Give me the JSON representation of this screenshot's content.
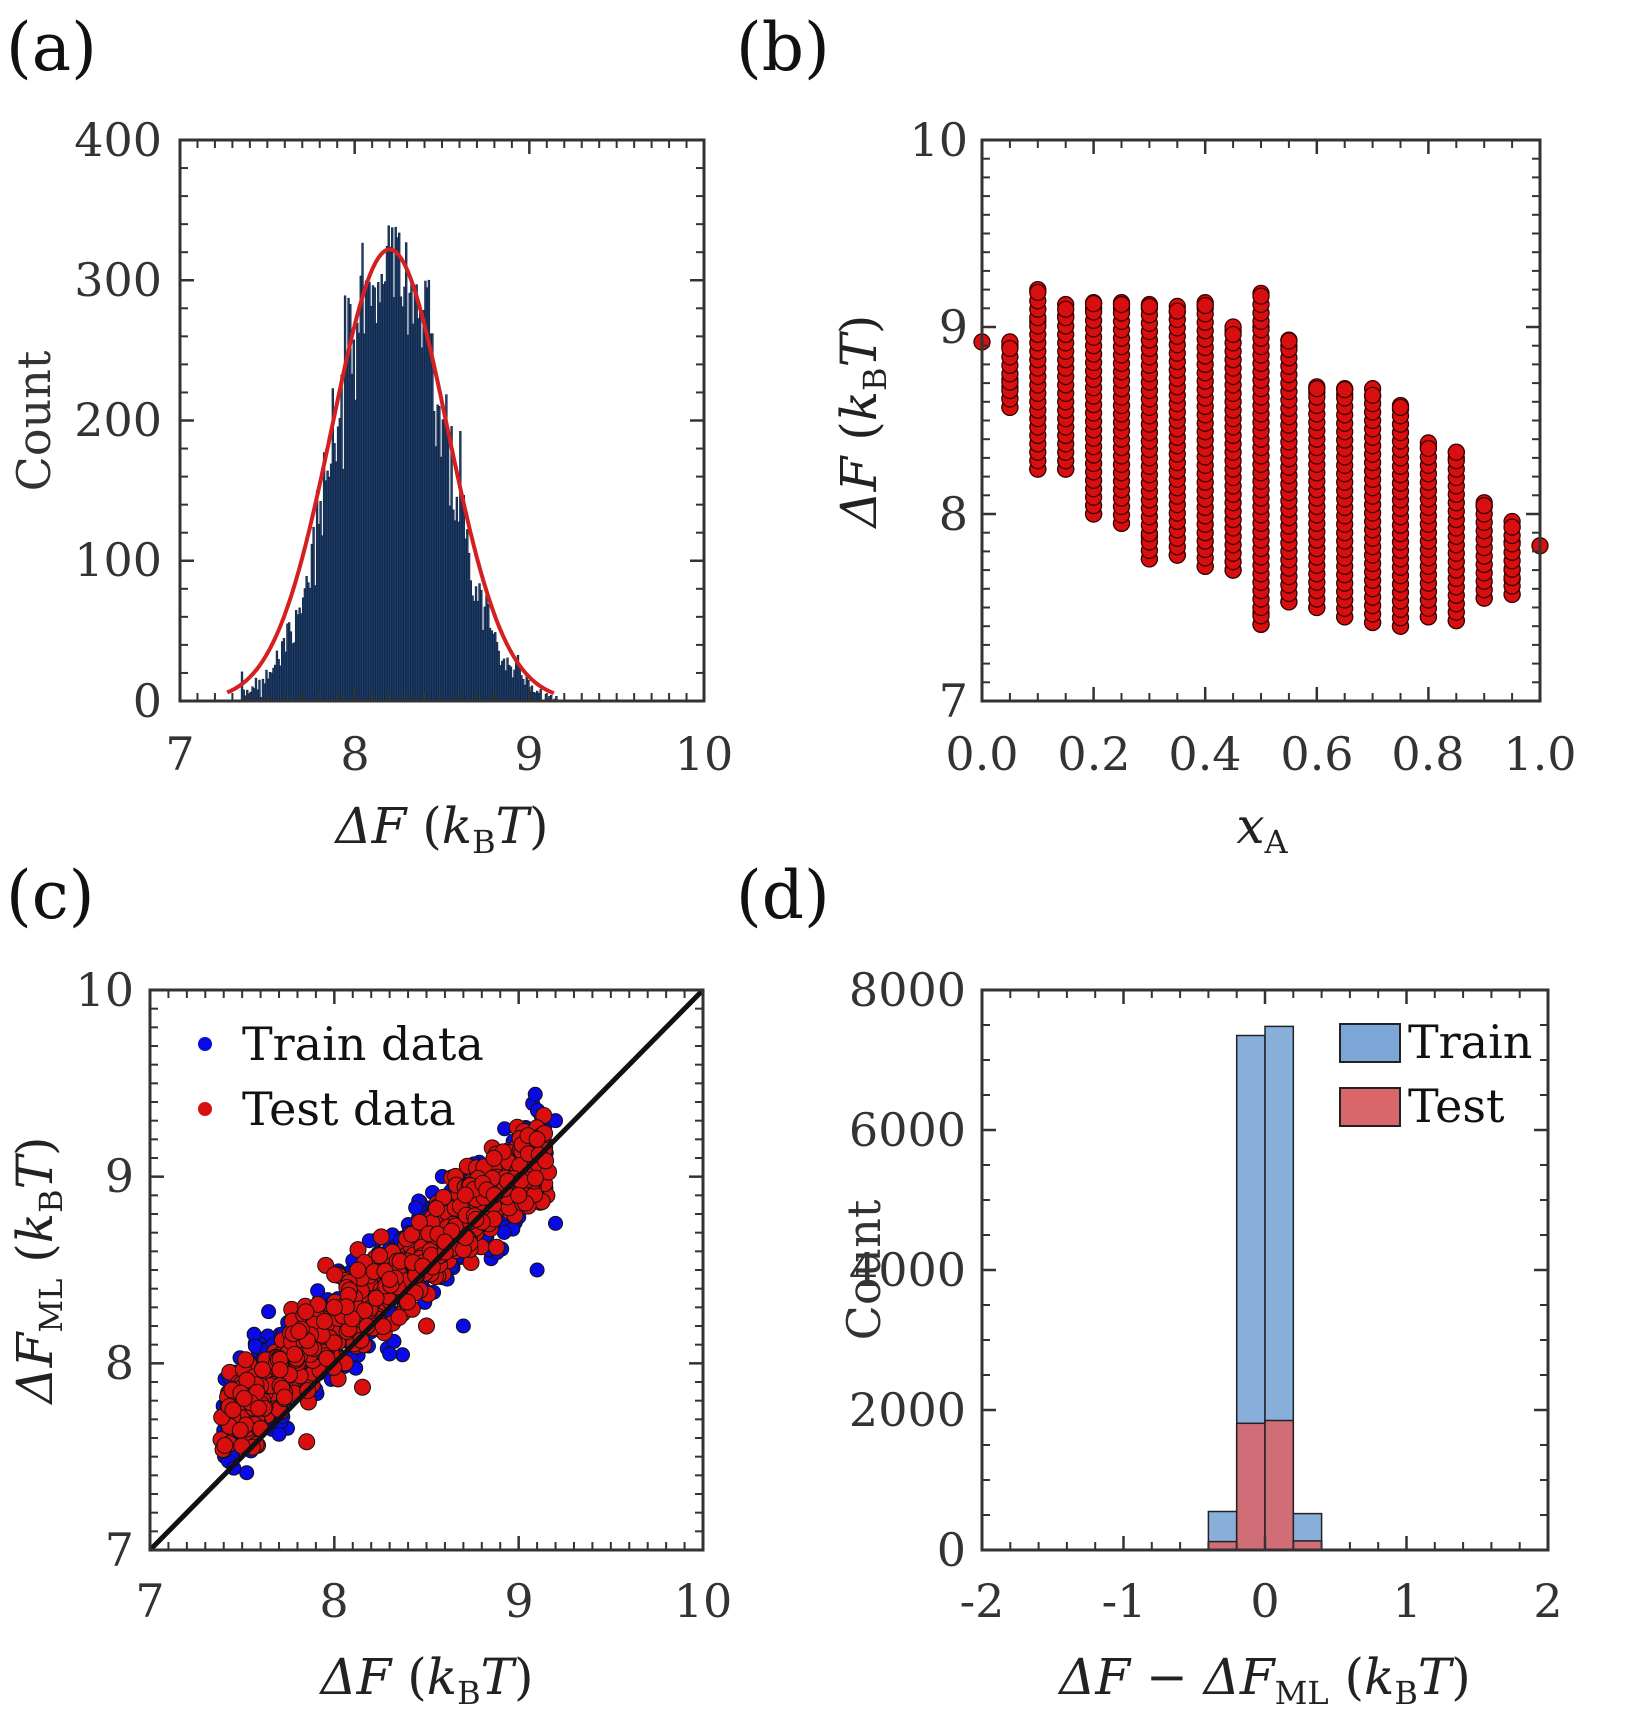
{
  "chart_data": [
    {
      "panel": "(a)",
      "type": "bar",
      "subtype": "histogram_with_gaussian_fit",
      "xlabel": "ΔF (kBT)",
      "ylabel": "Count",
      "xlim": [
        7,
        10
      ],
      "ylim": [
        0,
        400
      ],
      "xticks": [
        "7",
        "8",
        "9",
        "10"
      ],
      "yticks": [
        "0",
        "100",
        "200",
        "300",
        "400"
      ],
      "histogram": {
        "mean": 8.2,
        "sd": 0.3,
        "peak_count": 320,
        "bin_width": 0.01,
        "range": [
          7.35,
          9.15
        ],
        "color": "#1f3f6e"
      },
      "fit_curve": {
        "mean": 8.2,
        "sd": 0.33,
        "peak": 322,
        "range": [
          7.27,
          9.14
        ],
        "color": "#d42020"
      }
    },
    {
      "panel": "(b)",
      "type": "scatter",
      "xlabel": "xA",
      "ylabel": "ΔF (kBT)",
      "xlim": [
        0.0,
        1.0
      ],
      "ylim": [
        7,
        10
      ],
      "xticks": [
        "0.0",
        "0.2",
        "0.4",
        "0.6",
        "0.8",
        "1.0"
      ],
      "yticks": [
        "7",
        "8",
        "9",
        "10"
      ],
      "marker_color": "#d90f0f",
      "columns": [
        {
          "x": 0.0,
          "y": [
            8.92
          ]
        },
        {
          "x": 0.05,
          "y": [
            8.57,
            8.62,
            8.68,
            8.72,
            8.9,
            8.92
          ]
        },
        {
          "x": 0.1,
          "y": [
            8.24,
            9.03,
            9.2
          ]
        },
        {
          "x": 0.15,
          "y": [
            8.24,
            9.06,
            9.12
          ]
        },
        {
          "x": 0.2,
          "y": [
            8.0,
            9.1,
            9.13
          ]
        },
        {
          "x": 0.25,
          "y": [
            7.95,
            9.1,
            9.13
          ]
        },
        {
          "x": 0.3,
          "y": [
            7.76,
            7.88,
            9.1,
            9.12
          ]
        },
        {
          "x": 0.35,
          "y": [
            7.78,
            9.08,
            9.11
          ]
        },
        {
          "x": 0.4,
          "y": [
            7.72,
            9.1,
            9.13
          ]
        },
        {
          "x": 0.45,
          "y": [
            7.7,
            8.98,
            9.0
          ]
        },
        {
          "x": 0.5,
          "y": [
            7.41,
            7.47,
            9.0,
            9.18
          ]
        },
        {
          "x": 0.55,
          "y": [
            7.53,
            8.9,
            8.93
          ]
        },
        {
          "x": 0.6,
          "y": [
            7.5,
            8.65,
            8.68
          ]
        },
        {
          "x": 0.65,
          "y": [
            7.45,
            8.64,
            8.67
          ]
        },
        {
          "x": 0.7,
          "y": [
            7.42,
            8.63,
            8.67
          ]
        },
        {
          "x": 0.75,
          "y": [
            7.4,
            8.56,
            8.58
          ]
        },
        {
          "x": 0.8,
          "y": [
            7.45,
            8.36,
            8.38
          ]
        },
        {
          "x": 0.85,
          "y": [
            7.43,
            8.3,
            8.33
          ]
        },
        {
          "x": 0.9,
          "y": [
            7.55,
            8.04,
            8.06
          ]
        },
        {
          "x": 0.95,
          "y": [
            7.57,
            7.65,
            7.7,
            7.85,
            7.93,
            7.96
          ]
        },
        {
          "x": 1.0,
          "y": [
            7.83
          ]
        }
      ]
    },
    {
      "panel": "(c)",
      "type": "scatter",
      "xlabel": "ΔF (kBT)",
      "ylabel": "ΔF_ML (kBT)",
      "xlim": [
        7,
        10
      ],
      "ylim": [
        7,
        10
      ],
      "xticks": [
        "7",
        "8",
        "9",
        "10"
      ],
      "yticks": [
        "7",
        "8",
        "9",
        "10"
      ],
      "identity_line": [
        [
          7,
          7
        ],
        [
          10,
          10
        ]
      ],
      "series": [
        {
          "name": "Train data",
          "color": "#0a0ae6",
          "approx_points": [
            [
              7.4,
              7.7
            ],
            [
              7.4,
              7.53
            ],
            [
              7.7,
              7.62
            ],
            [
              8.1,
              8.55
            ],
            [
              8.7,
              8.2
            ],
            [
              9.0,
              9.0
            ],
            [
              9.1,
              8.5
            ],
            [
              9.2,
              9.3
            ],
            [
              9.2,
              8.75
            ],
            [
              8.3,
              8.05
            ]
          ]
        },
        {
          "name": "Test data",
          "color": "#d90f0f",
          "approx_points": [
            [
              7.45,
              7.75
            ],
            [
              7.6,
              7.65
            ],
            [
              7.85,
              7.58
            ],
            [
              8.0,
              8.3
            ],
            [
              8.3,
              8.45
            ],
            [
              8.6,
              8.65
            ],
            [
              9.0,
              8.9
            ],
            [
              9.1,
              9.2
            ],
            [
              8.5,
              8.2
            ]
          ]
        }
      ]
    },
    {
      "panel": "(d)",
      "type": "bar",
      "subtype": "overlaid_histogram",
      "xlabel": "ΔF − ΔF_ML (kBT)",
      "ylabel": "Count",
      "xlim": [
        -2,
        2
      ],
      "ylim": [
        0,
        8000
      ],
      "xticks": [
        "-2",
        "-1",
        "0",
        "1",
        "2"
      ],
      "yticks": [
        "0",
        "2000",
        "4000",
        "6000",
        "8000"
      ],
      "bin_edges": [
        -0.4,
        -0.2,
        0.0,
        0.2,
        0.4
      ],
      "series": [
        {
          "name": "Train",
          "color": "#7ba6d6",
          "values": [
            550,
            7350,
            7480,
            520
          ]
        },
        {
          "name": "Test",
          "color": "#d9666a",
          "values": [
            120,
            1810,
            1850,
            130
          ]
        }
      ]
    }
  ],
  "labels": {
    "a": "(a)",
    "b": "(b)",
    "c": "(c)",
    "d": "(d)",
    "count": "Count",
    "deltaF": "ΔF",
    "deltaFML": "ΔF",
    "ML": "ML",
    "kB": "k",
    "B": "B",
    "T": "T",
    "xA_x": "x",
    "xA_sub": "A",
    "minus": "−"
  }
}
